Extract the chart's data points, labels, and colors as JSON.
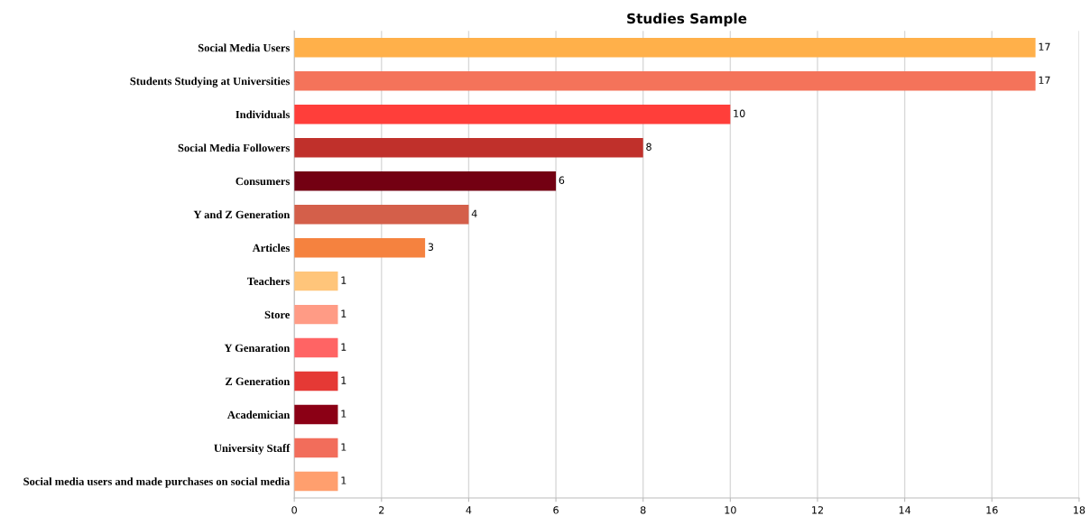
{
  "chart_data": {
    "type": "bar",
    "orientation": "horizontal",
    "title": "Studies Sample",
    "categories": [
      "Social Media Users",
      "Students Studying at Universities",
      "Individuals",
      "Social Media Followers",
      "Consumers",
      "Y and Z Generation",
      "Articles",
      "Teachers",
      "Store",
      "Y Genaration",
      "Z Generation",
      "Academician",
      "University Staff",
      "Social media users and made purchases on social media"
    ],
    "values": [
      17,
      17,
      10,
      8,
      6,
      4,
      3,
      1,
      1,
      1,
      1,
      1,
      1,
      1
    ],
    "colors": [
      "#ffb04a",
      "#f4735a",
      "#ff3e3a",
      "#c0302b",
      "#730012",
      "#d45f4a",
      "#f5823f",
      "#ffc57a",
      "#ff9b85",
      "#ff6464",
      "#e53935",
      "#8b0015",
      "#f26d5b",
      "#ff9f6e"
    ],
    "xlim": [
      0,
      18
    ],
    "xticks": [
      0,
      2,
      4,
      6,
      8,
      10,
      12,
      14,
      16,
      18
    ],
    "grid": "x",
    "data_labels": true
  }
}
